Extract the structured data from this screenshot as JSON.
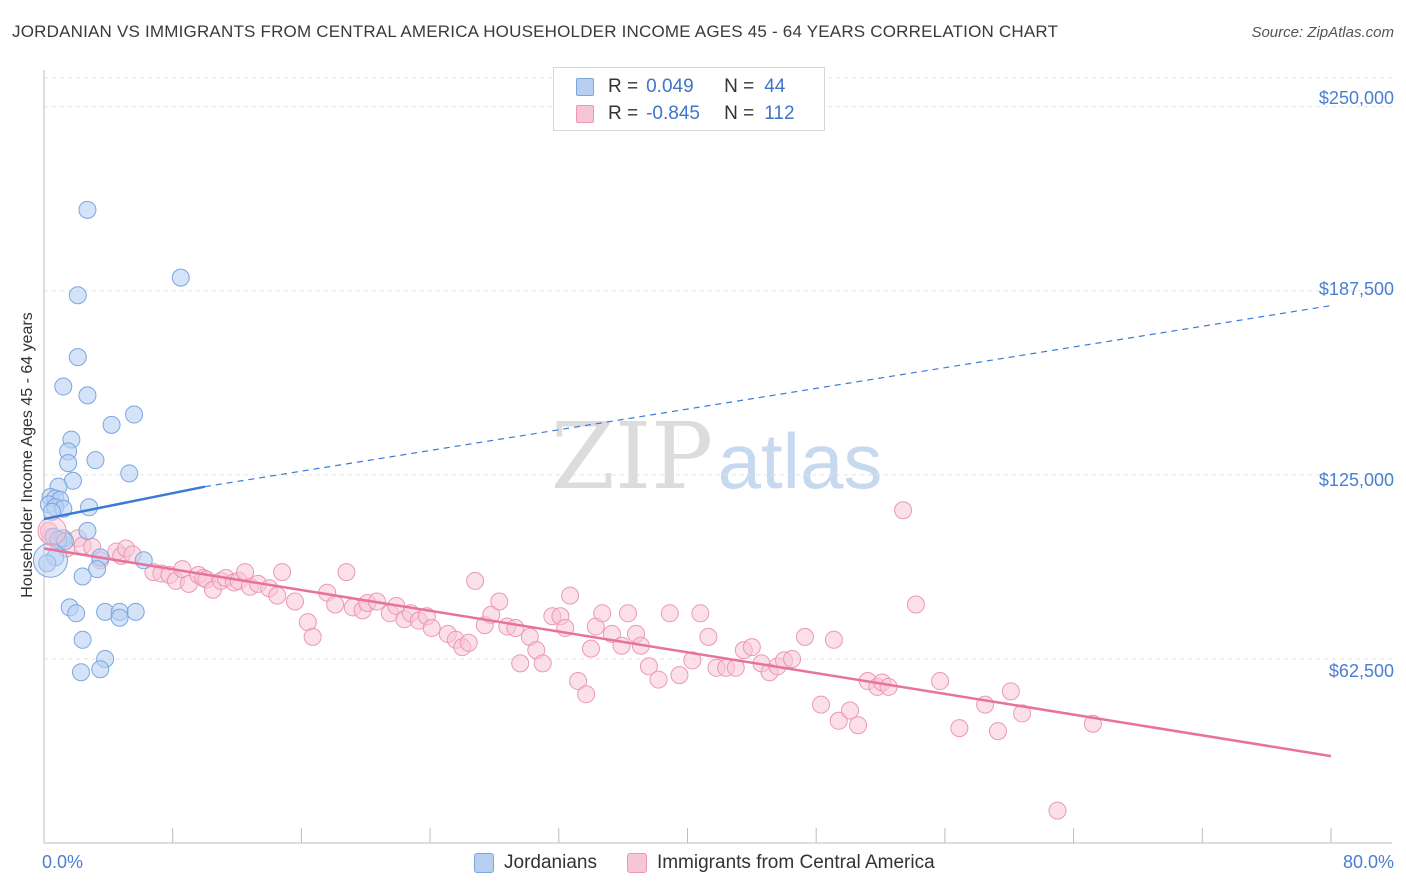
{
  "title": "JORDANIAN VS IMMIGRANTS FROM CENTRAL AMERICA HOUSEHOLDER INCOME AGES 45 - 64 YEARS CORRELATION CHART",
  "source": "Source: ZipAtlas.com",
  "watermark": {
    "zip": "ZIP",
    "atlas": "atlas"
  },
  "legend": {
    "rows": [
      {
        "r_label": "R =",
        "r_value": "0.049",
        "n_label": "N =",
        "n_value": "44"
      },
      {
        "r_label": "R =",
        "r_value": "-0.845",
        "n_label": "N =",
        "n_value": "112"
      }
    ]
  },
  "bottom_legend": [
    "Jordanians",
    "Immigrants from Central America"
  ],
  "colors": {
    "blue_fill": "#b7d0f2",
    "blue_stroke": "#7aa6e0",
    "blue_line": "#3a7bd5",
    "pink_fill": "#f7c6d6",
    "pink_stroke": "#ec98b4",
    "pink_line": "#e8729a",
    "grid": "#e2e2e2",
    "tick_text": "#4a7fd0"
  },
  "chart_data": {
    "type": "scatter",
    "title": "JORDANIAN VS IMMIGRANTS FROM CENTRAL AMERICA HOUSEHOLDER INCOME AGES 45 - 64 YEARS CORRELATION CHART",
    "xlabel": "",
    "ylabel": "Householder Income Ages 45 - 64 years",
    "xlim": [
      0,
      80
    ],
    "ylim": [
      0,
      262500
    ],
    "x_tick_labels": [
      "0.0%",
      "80.0%"
    ],
    "y_ticks": [
      62500,
      125000,
      187500,
      250000
    ],
    "y_tick_labels": [
      "$62,500",
      "$125,000",
      "$187,500",
      "$250,000"
    ],
    "grid": true,
    "legend_position": "top-center",
    "series": [
      {
        "name": "Jordanians",
        "r": 0.049,
        "n": 44,
        "trend": {
          "x": [
            0,
            10
          ],
          "y": [
            110000,
            121000
          ],
          "solid_until": 10,
          "dashed_to": [
            80,
            182500
          ]
        },
        "points": [
          [
            2.7,
            215000
          ],
          [
            8.5,
            192000
          ],
          [
            2.1,
            186000
          ],
          [
            2.1,
            165000
          ],
          [
            1.2,
            155000
          ],
          [
            2.7,
            152000
          ],
          [
            5.6,
            145500
          ],
          [
            4.2,
            142000
          ],
          [
            1.7,
            137000
          ],
          [
            1.5,
            133000
          ],
          [
            3.2,
            130000
          ],
          [
            1.5,
            129000
          ],
          [
            5.3,
            125500
          ],
          [
            1.8,
            123000
          ],
          [
            0.9,
            121000
          ],
          [
            0.4,
            117500
          ],
          [
            0.7,
            117000
          ],
          [
            1.0,
            116500
          ],
          [
            0.3,
            115000
          ],
          [
            0.7,
            114000
          ],
          [
            2.8,
            114000
          ],
          [
            1.2,
            113500
          ],
          [
            0.5,
            112500
          ],
          [
            2.7,
            106000
          ],
          [
            0.6,
            104000
          ],
          [
            1.2,
            103500
          ],
          [
            0.9,
            103000
          ],
          [
            1.3,
            102500
          ],
          [
            0.7,
            97000
          ],
          [
            3.5,
            97000
          ],
          [
            6.2,
            96000
          ],
          [
            0.2,
            95000
          ],
          [
            3.3,
            93000
          ],
          [
            2.4,
            90500
          ],
          [
            1.6,
            80000
          ],
          [
            2.0,
            78000
          ],
          [
            3.8,
            78500
          ],
          [
            4.7,
            78500
          ],
          [
            5.7,
            78500
          ],
          [
            4.7,
            76500
          ],
          [
            2.4,
            69000
          ],
          [
            3.8,
            62500
          ],
          [
            3.5,
            59000
          ],
          [
            2.3,
            58000
          ]
        ]
      },
      {
        "name": "Immigrants from Central America",
        "r": -0.845,
        "n": 112,
        "trend": {
          "x": [
            0,
            80
          ],
          "y": [
            100000,
            29500
          ]
        },
        "points": [
          [
            0.4,
            104000
          ],
          [
            0.9,
            102000
          ],
          [
            1.4,
            100000
          ],
          [
            2.1,
            103500
          ],
          [
            2.4,
            101000
          ],
          [
            3.0,
            100500
          ],
          [
            3.5,
            96000
          ],
          [
            4.5,
            99000
          ],
          [
            4.8,
            97500
          ],
          [
            5.1,
            100000
          ],
          [
            5.5,
            98000
          ],
          [
            6.8,
            92000
          ],
          [
            7.3,
            91500
          ],
          [
            7.8,
            91000
          ],
          [
            8.2,
            89000
          ],
          [
            8.6,
            93000
          ],
          [
            9.0,
            88000
          ],
          [
            9.6,
            91000
          ],
          [
            9.9,
            90000
          ],
          [
            10.1,
            89500
          ],
          [
            10.5,
            86000
          ],
          [
            11.0,
            89000
          ],
          [
            11.3,
            90000
          ],
          [
            11.8,
            88500
          ],
          [
            12.1,
            89000
          ],
          [
            12.5,
            92000
          ],
          [
            12.8,
            87000
          ],
          [
            13.3,
            88000
          ],
          [
            14.0,
            86500
          ],
          [
            14.8,
            92000
          ],
          [
            14.5,
            84000
          ],
          [
            15.6,
            82000
          ],
          [
            16.4,
            75000
          ],
          [
            16.7,
            70000
          ],
          [
            17.6,
            85000
          ],
          [
            18.1,
            81000
          ],
          [
            18.8,
            92000
          ],
          [
            19.2,
            80000
          ],
          [
            19.8,
            79000
          ],
          [
            20.1,
            81500
          ],
          [
            20.7,
            82000
          ],
          [
            21.5,
            78000
          ],
          [
            21.9,
            80500
          ],
          [
            22.4,
            76000
          ],
          [
            22.8,
            78000
          ],
          [
            23.3,
            75500
          ],
          [
            23.8,
            77000
          ],
          [
            24.1,
            73000
          ],
          [
            25.1,
            71000
          ],
          [
            25.6,
            69000
          ],
          [
            26.0,
            66500
          ],
          [
            26.4,
            68000
          ],
          [
            26.8,
            89000
          ],
          [
            27.4,
            74000
          ],
          [
            27.8,
            77500
          ],
          [
            28.3,
            82000
          ],
          [
            28.8,
            73500
          ],
          [
            29.3,
            73000
          ],
          [
            29.6,
            61000
          ],
          [
            30.2,
            70000
          ],
          [
            30.6,
            65500
          ],
          [
            31.0,
            61000
          ],
          [
            31.6,
            77000
          ],
          [
            32.1,
            77000
          ],
          [
            32.7,
            84000
          ],
          [
            32.4,
            73000
          ],
          [
            33.2,
            55000
          ],
          [
            33.7,
            50500
          ],
          [
            34.0,
            66000
          ],
          [
            34.3,
            73500
          ],
          [
            34.7,
            78000
          ],
          [
            35.3,
            71000
          ],
          [
            35.9,
            67000
          ],
          [
            36.3,
            78000
          ],
          [
            36.8,
            71000
          ],
          [
            37.1,
            67000
          ],
          [
            37.6,
            60000
          ],
          [
            38.2,
            55500
          ],
          [
            38.9,
            78000
          ],
          [
            39.5,
            57000
          ],
          [
            40.3,
            62000
          ],
          [
            40.8,
            78000
          ],
          [
            41.3,
            70000
          ],
          [
            41.8,
            59500
          ],
          [
            42.4,
            59500
          ],
          [
            43.0,
            59500
          ],
          [
            43.5,
            65500
          ],
          [
            44.0,
            66500
          ],
          [
            44.6,
            61000
          ],
          [
            45.1,
            58000
          ],
          [
            45.6,
            60000
          ],
          [
            46.0,
            62000
          ],
          [
            46.5,
            62500
          ],
          [
            47.3,
            70000
          ],
          [
            48.3,
            47000
          ],
          [
            49.1,
            69000
          ],
          [
            49.4,
            41500
          ],
          [
            50.1,
            45000
          ],
          [
            50.6,
            40000
          ],
          [
            51.2,
            55000
          ],
          [
            51.8,
            53000
          ],
          [
            52.1,
            54500
          ],
          [
            52.5,
            53000
          ],
          [
            53.4,
            113000
          ],
          [
            54.2,
            81000
          ],
          [
            55.7,
            55000
          ],
          [
            56.9,
            39000
          ],
          [
            58.5,
            47000
          ],
          [
            59.3,
            38000
          ],
          [
            60.1,
            51500
          ],
          [
            60.8,
            44000
          ],
          [
            63.0,
            11000
          ],
          [
            65.2,
            40500
          ],
          [
            0.3,
            106000
          ]
        ]
      }
    ]
  }
}
